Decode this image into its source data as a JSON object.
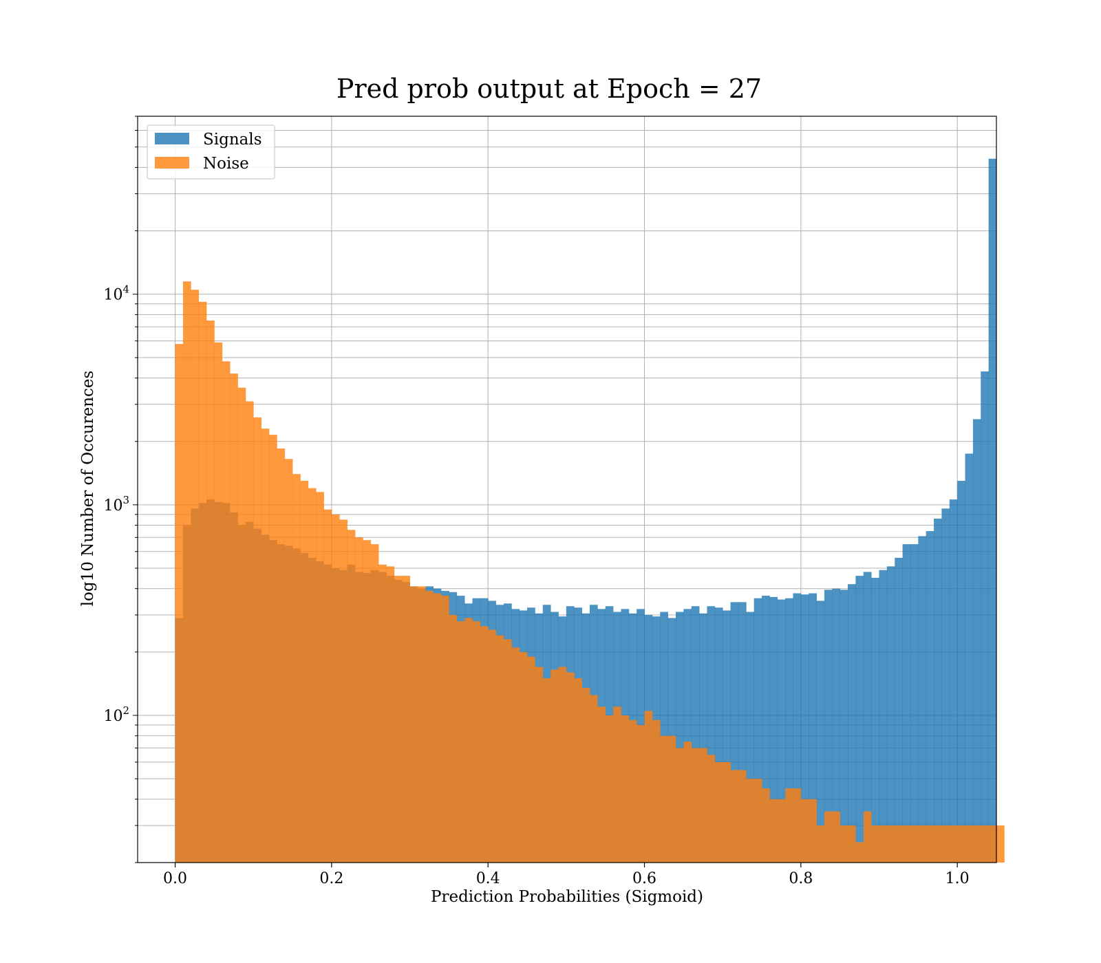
{
  "chart_data": {
    "type": "bar",
    "title": "Pred prob output at Epoch = 27",
    "xlabel": "Prediction Probabilities (Sigmoid)",
    "ylabel": "log10 Number of Occurences",
    "y_scale": "log",
    "xlim": [
      -0.048,
      1.05
    ],
    "ylim": [
      20,
      70000
    ],
    "x_ticks": [
      0.0,
      0.2,
      0.4,
      0.6,
      0.8,
      1.0
    ],
    "x_tick_labels": [
      "0.0",
      "0.2",
      "0.4",
      "0.6",
      "0.8",
      "1.0"
    ],
    "y_ticks": [
      {
        "value": 100,
        "base": "10",
        "exp": "2"
      },
      {
        "value": 1000,
        "base": "10",
        "exp": "3"
      },
      {
        "value": 10000,
        "base": "10",
        "exp": "4"
      }
    ],
    "grid": true,
    "legend_position": "top-left",
    "bin_start": 0.0,
    "bin_width": 0.01,
    "series": [
      {
        "name": "Signals",
        "color": "#1f77b4",
        "opacity": 0.8,
        "values": [
          290,
          800,
          960,
          1020,
          1060,
          1030,
          1020,
          920,
          800,
          830,
          770,
          720,
          680,
          650,
          640,
          620,
          590,
          560,
          540,
          520,
          500,
          490,
          520,
          480,
          475,
          490,
          480,
          460,
          440,
          430,
          410,
          400,
          410,
          400,
          390,
          385,
          370,
          340,
          360,
          360,
          350,
          335,
          340,
          320,
          315,
          325,
          305,
          335,
          310,
          295,
          330,
          325,
          305,
          335,
          320,
          330,
          310,
          320,
          305,
          320,
          300,
          295,
          310,
          290,
          310,
          320,
          330,
          305,
          330,
          325,
          315,
          345,
          345,
          310,
          360,
          370,
          365,
          355,
          360,
          380,
          375,
          380,
          350,
          395,
          400,
          395,
          420,
          460,
          480,
          450,
          490,
          510,
          560,
          650,
          650,
          710,
          750,
          860,
          960,
          1060,
          1300,
          1750,
          2550,
          4300,
          44000
        ]
      },
      {
        "name": "Noise",
        "color": "#ff7f0e",
        "opacity": 0.8,
        "values": [
          5800,
          11500,
          10500,
          9200,
          7500,
          5900,
          4800,
          4200,
          3600,
          3100,
          2600,
          2300,
          2150,
          1850,
          1650,
          1400,
          1300,
          1200,
          1150,
          950,
          900,
          850,
          760,
          700,
          680,
          650,
          520,
          510,
          460,
          460,
          410,
          410,
          390,
          380,
          370,
          300,
          280,
          290,
          280,
          265,
          255,
          240,
          230,
          210,
          200,
          190,
          170,
          150,
          165,
          170,
          160,
          150,
          135,
          125,
          110,
          100,
          110,
          100,
          95,
          90,
          105,
          95,
          80,
          80,
          70,
          75,
          70,
          70,
          65,
          60,
          60,
          55,
          55,
          50,
          50,
          45,
          40,
          40,
          45,
          45,
          40,
          40,
          30,
          35,
          35,
          30,
          30,
          25,
          35,
          30,
          30,
          30,
          30,
          30,
          30,
          30,
          30,
          30,
          30,
          30,
          30,
          30,
          30,
          30,
          30,
          30
        ]
      }
    ]
  }
}
